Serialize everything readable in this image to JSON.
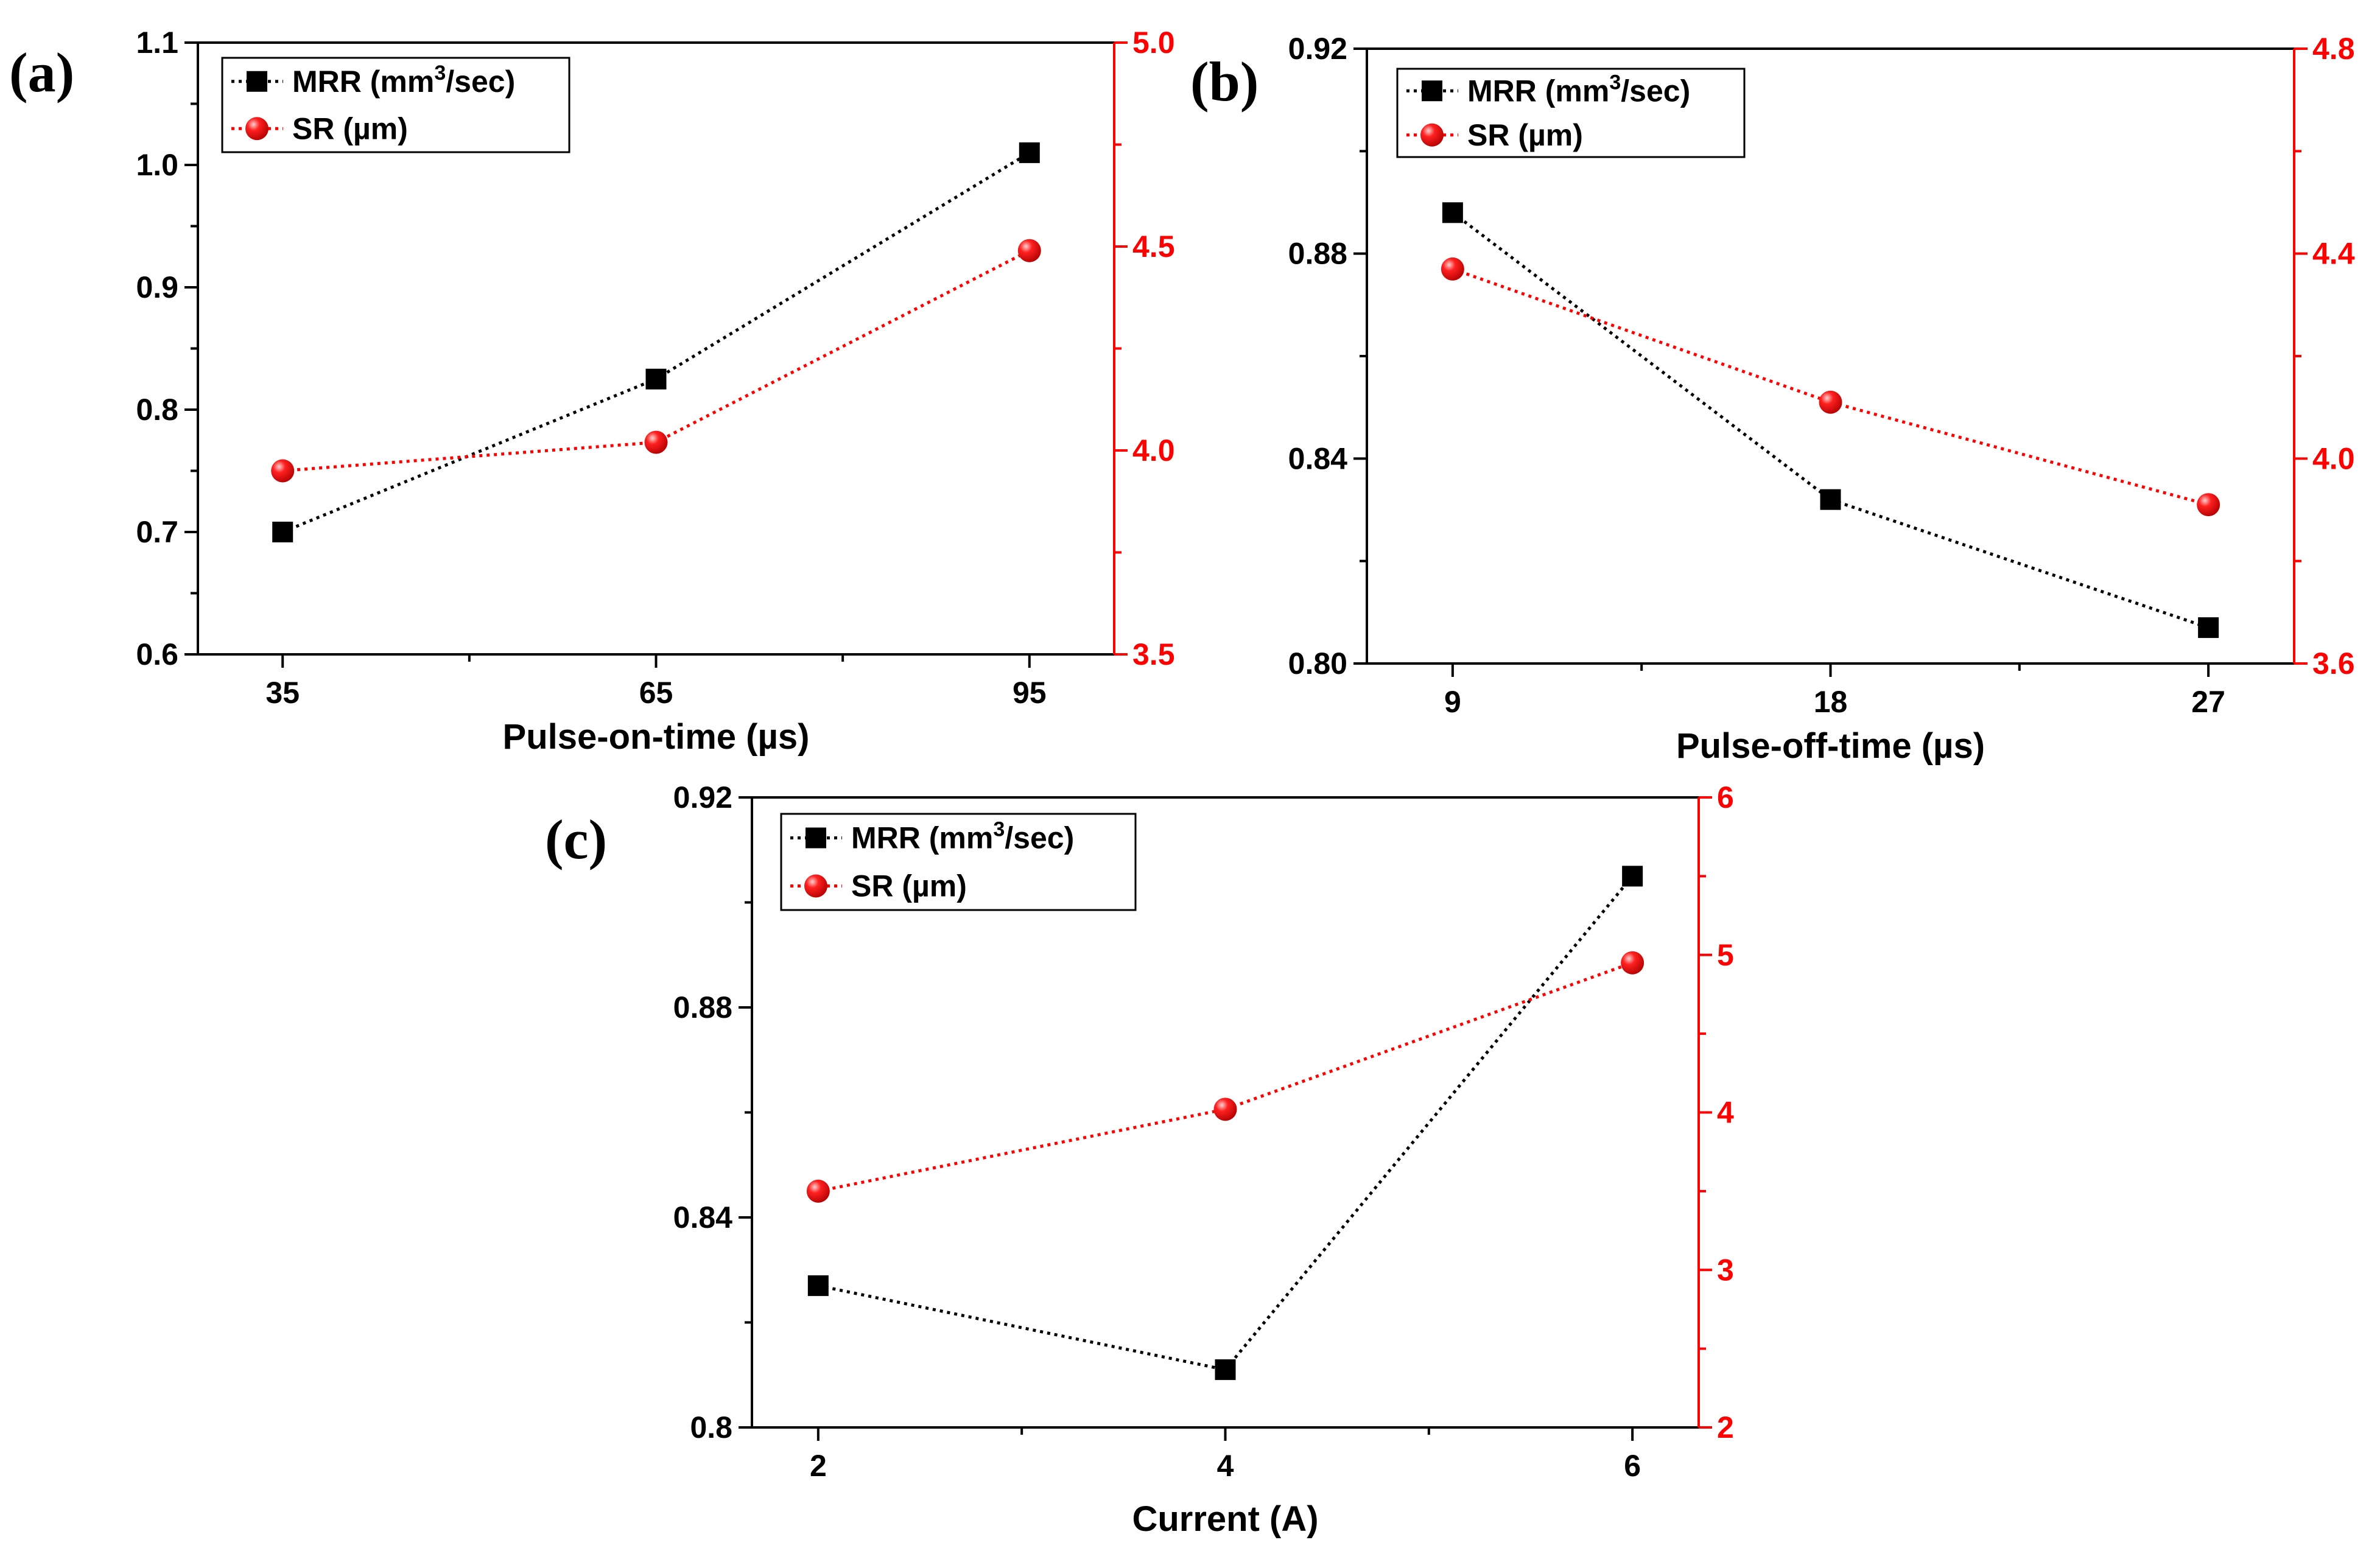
{
  "colors": {
    "mrr": "#000000",
    "sr": "#ff0000",
    "axis": "#000000"
  },
  "chart_data": [
    {
      "id": "a",
      "type": "line",
      "panel_label": "(a)",
      "xlabel": "Pulse-on-time (µs)",
      "categories": [
        "35",
        "65",
        "95"
      ],
      "y_left": {
        "label": "",
        "lim": [
          0.6,
          1.1
        ],
        "ticks": [
          "0.6",
          "0.7",
          "0.8",
          "0.9",
          "1.0",
          "1.1"
        ]
      },
      "y_right": {
        "label": "",
        "lim": [
          3.5,
          5.0
        ],
        "ticks": [
          "3.5",
          "4.0",
          "4.5",
          "5.0"
        ]
      },
      "series": [
        {
          "name": "MRR (mm",
          "sup": "3",
          "name_tail": "/sec)",
          "axis": "left",
          "marker": "square",
          "values": [
            0.7,
            0.825,
            1.01
          ]
        },
        {
          "name": "SR (µm)",
          "sup": "",
          "name_tail": "",
          "axis": "right",
          "marker": "circle",
          "values": [
            3.95,
            4.02,
            4.49
          ]
        }
      ]
    },
    {
      "id": "b",
      "type": "line",
      "panel_label": "(b)",
      "xlabel": "Pulse-off-time (µs)",
      "categories": [
        "9",
        "18",
        "27"
      ],
      "y_left": {
        "label": "",
        "lim": [
          0.8,
          0.92
        ],
        "ticks": [
          "0.80",
          "0.84",
          "0.88",
          "0.92"
        ]
      },
      "y_right": {
        "label": "",
        "lim": [
          3.6,
          4.8
        ],
        "ticks": [
          "3.6",
          "4.0",
          "4.4",
          "4.8"
        ]
      },
      "series": [
        {
          "name": "MRR (mm",
          "sup": "3",
          "name_tail": "/sec)",
          "axis": "left",
          "marker": "square",
          "values": [
            0.888,
            0.832,
            0.807
          ]
        },
        {
          "name": "SR (µm)",
          "sup": "",
          "name_tail": "",
          "axis": "right",
          "marker": "circle",
          "values": [
            4.37,
            4.11,
            3.91
          ]
        }
      ]
    },
    {
      "id": "c",
      "type": "line",
      "panel_label": "(c)",
      "xlabel": "Current (A)",
      "categories": [
        "2",
        "4",
        "6"
      ],
      "y_left": {
        "label": "",
        "lim": [
          0.8,
          0.92
        ],
        "ticks": [
          "0.8",
          "0.84",
          "0.88",
          "0.92"
        ]
      },
      "y_right": {
        "label": "",
        "lim": [
          2,
          6
        ],
        "ticks": [
          "2",
          "3",
          "4",
          "5",
          "6"
        ]
      },
      "series": [
        {
          "name": "MRR (mm",
          "sup": "3",
          "name_tail": "/sec)",
          "axis": "left",
          "marker": "square",
          "values": [
            0.827,
            0.811,
            0.905
          ]
        },
        {
          "name": "SR (µm)",
          "sup": "",
          "name_tail": "",
          "axis": "right",
          "marker": "circle",
          "values": [
            3.5,
            4.02,
            4.95
          ]
        }
      ]
    }
  ]
}
